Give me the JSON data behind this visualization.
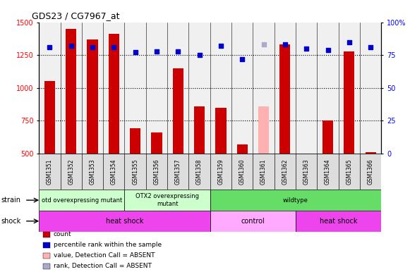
{
  "title": "GDS23 / CG7967_at",
  "samples": [
    "GSM1351",
    "GSM1352",
    "GSM1353",
    "GSM1354",
    "GSM1355",
    "GSM1356",
    "GSM1357",
    "GSM1358",
    "GSM1359",
    "GSM1360",
    "GSM1361",
    "GSM1362",
    "GSM1363",
    "GSM1364",
    "GSM1365",
    "GSM1366"
  ],
  "bar_values": [
    1050,
    1450,
    1370,
    1410,
    690,
    660,
    1150,
    860,
    850,
    570,
    null,
    1330,
    null,
    750,
    1280,
    510
  ],
  "bar_absent_values": [
    null,
    null,
    null,
    null,
    null,
    null,
    null,
    null,
    null,
    null,
    860,
    null,
    null,
    null,
    null,
    null
  ],
  "bar_color": "#cc0000",
  "bar_absent_color": "#ffb0b0",
  "dot_values": [
    81,
    82,
    81,
    81,
    77,
    78,
    78,
    75,
    82,
    72,
    null,
    83,
    80,
    79,
    85,
    81
  ],
  "dot_absent_values": [
    null,
    null,
    null,
    null,
    null,
    null,
    null,
    null,
    null,
    null,
    83,
    null,
    null,
    null,
    null,
    null
  ],
  "dot_color": "#0000cc",
  "dot_absent_color": "#aaaacc",
  "ylim_left": [
    500,
    1500
  ],
  "ylim_right": [
    0,
    100
  ],
  "yticks_left": [
    500,
    750,
    1000,
    1250,
    1500
  ],
  "yticks_right": [
    0,
    25,
    50,
    75,
    100
  ],
  "strain_groups": [
    {
      "label": "otd overexpressing mutant",
      "start": 0,
      "end": 4,
      "color": "#ccffcc"
    },
    {
      "label": "OTX2 overexpressing\nmutant",
      "start": 4,
      "end": 8,
      "color": "#ccffcc"
    },
    {
      "label": "wildtype",
      "start": 8,
      "end": 16,
      "color": "#66dd66"
    }
  ],
  "shock_groups": [
    {
      "label": "heat shock",
      "start": 0,
      "end": 8,
      "color": "#ee44ee"
    },
    {
      "label": "control",
      "start": 8,
      "end": 12,
      "color": "#ffaaff"
    },
    {
      "label": "heat shock",
      "start": 12,
      "end": 16,
      "color": "#ee44ee"
    }
  ],
  "strain_label": "strain",
  "shock_label": "shock",
  "legend_items": [
    {
      "color": "#cc0000",
      "label": "count"
    },
    {
      "color": "#0000cc",
      "label": "percentile rank within the sample"
    },
    {
      "color": "#ffb0b0",
      "label": "value, Detection Call = ABSENT"
    },
    {
      "color": "#aaaacc",
      "label": "rank, Detection Call = ABSENT"
    }
  ],
  "bar_width": 0.5,
  "dot_size": 25,
  "bg_color": "#f0f0f0",
  "grid_color": "#aaaaaa",
  "tick_box_color": "#dddddd"
}
